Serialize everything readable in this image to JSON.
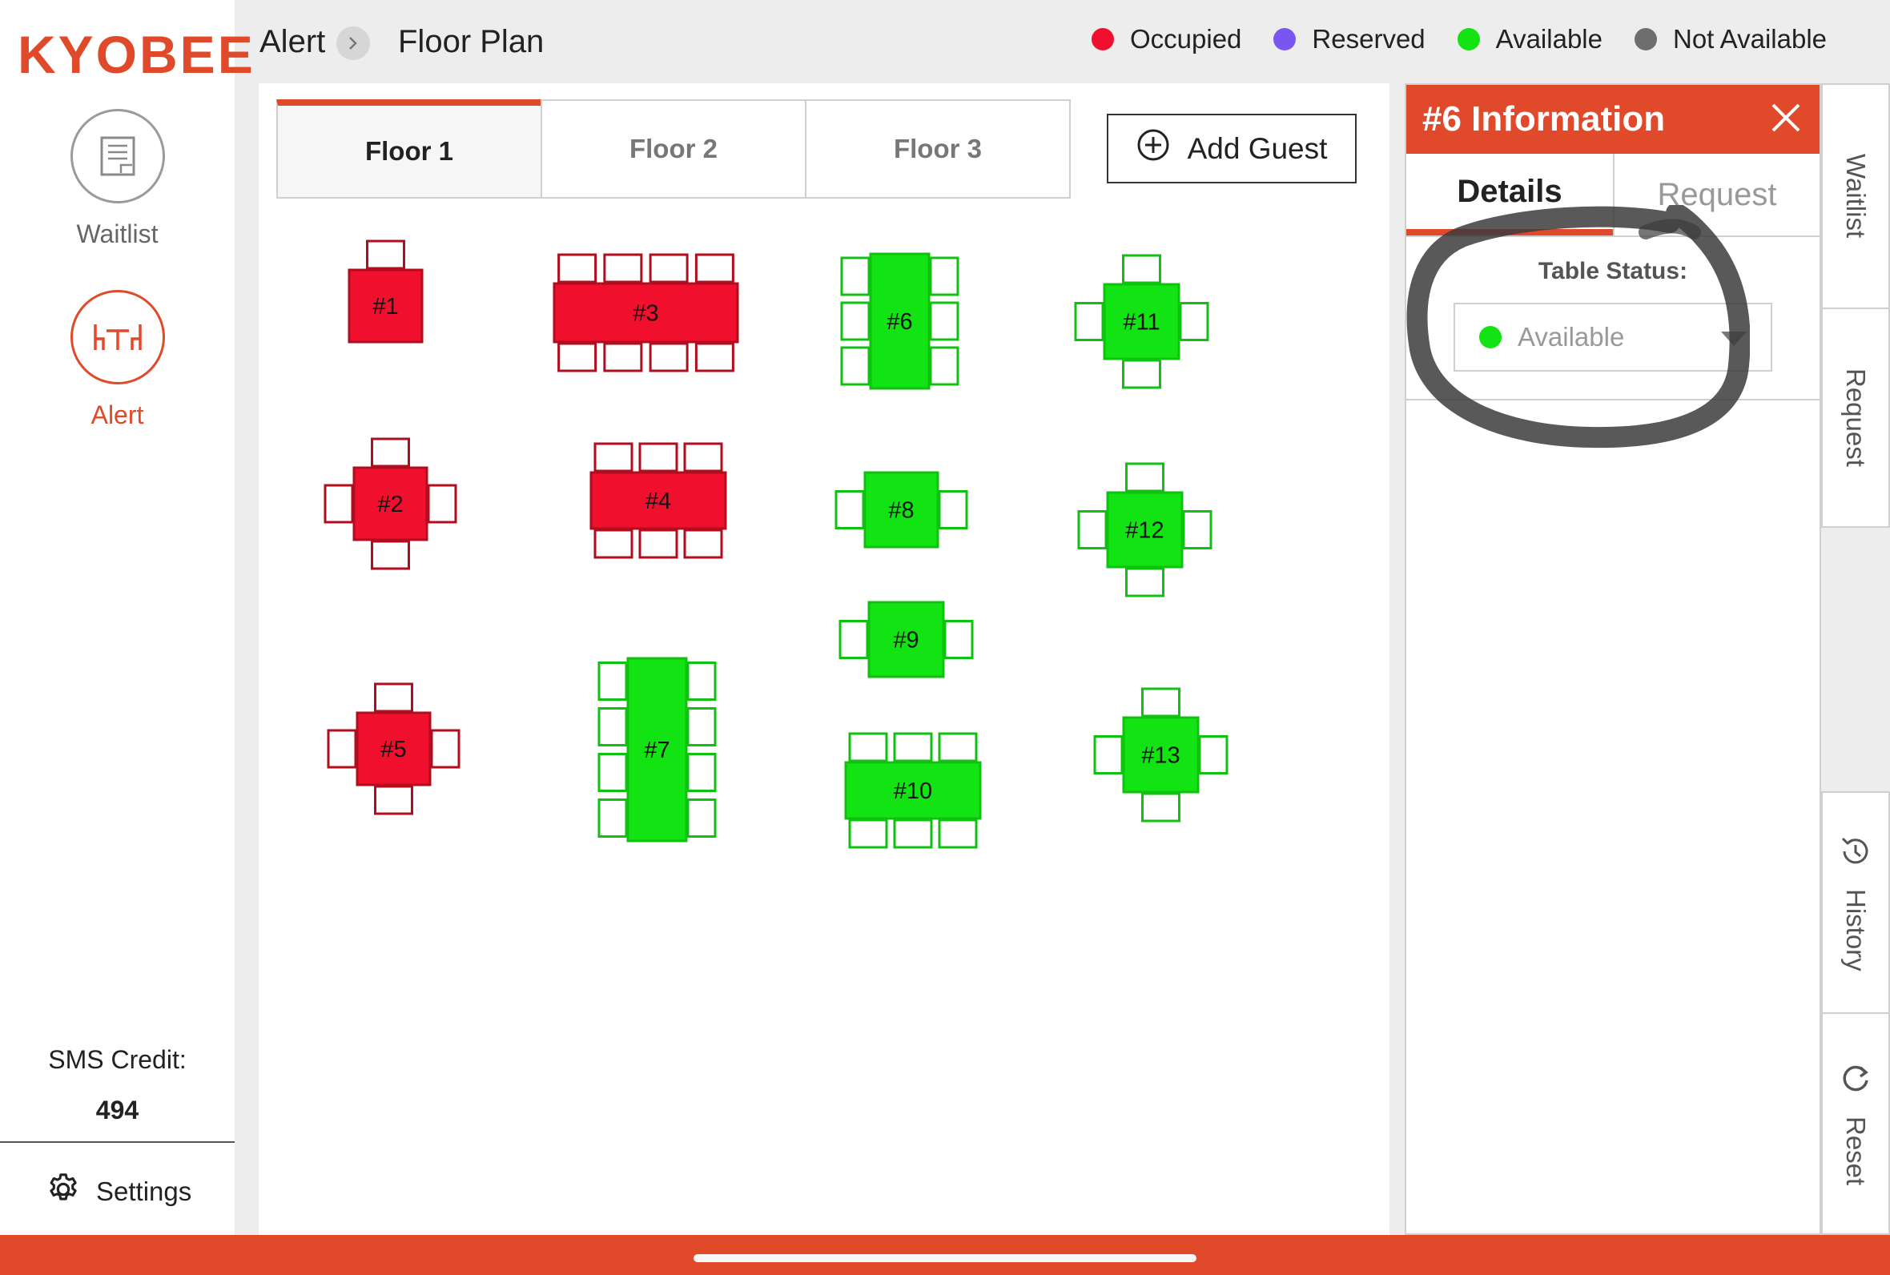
{
  "app": {
    "logo": "KYOBEE"
  },
  "sidebar": {
    "items": [
      {
        "label": "Waitlist",
        "icon": "waitlist-icon",
        "active": false
      },
      {
        "label": "Alert",
        "icon": "table-icon",
        "active": true
      }
    ],
    "sms_credit_label": "SMS Credit:",
    "sms_credit_value": "494",
    "settings_label": "Settings"
  },
  "header": {
    "title": "Alert",
    "subtitle": "Floor Plan",
    "legend": [
      {
        "label": "Occupied",
        "color": "#f0102e"
      },
      {
        "label": "Reserved",
        "color": "#7b55f0"
      },
      {
        "label": "Available",
        "color": "#12e312"
      },
      {
        "label": "Not Available",
        "color": "#6e6e6e"
      }
    ]
  },
  "floors": {
    "tabs": [
      {
        "label": "Floor 1",
        "active": true
      },
      {
        "label": "Floor 2",
        "active": false
      },
      {
        "label": "Floor 3",
        "active": false
      }
    ],
    "add_guest_label": "Add Guest"
  },
  "tables": [
    {
      "label": "#1",
      "status": "occupied"
    },
    {
      "label": "#2",
      "status": "occupied"
    },
    {
      "label": "#3",
      "status": "occupied"
    },
    {
      "label": "#4",
      "status": "occupied"
    },
    {
      "label": "#5",
      "status": "occupied"
    },
    {
      "label": "#6",
      "status": "available"
    },
    {
      "label": "#7",
      "status": "available"
    },
    {
      "label": "#8",
      "status": "available"
    },
    {
      "label": "#9",
      "status": "available"
    },
    {
      "label": "#10",
      "status": "available"
    },
    {
      "label": "#11",
      "status": "available"
    },
    {
      "label": "#12",
      "status": "available"
    },
    {
      "label": "#13",
      "status": "available"
    }
  ],
  "status_colors": {
    "occupied": {
      "fill": "#f0102e",
      "stroke": "#b00d1e"
    },
    "available": {
      "fill": "#12e312",
      "stroke": "#0fc20f"
    }
  },
  "info_panel": {
    "title": "#6 Information",
    "tabs": [
      {
        "label": "Details",
        "active": true
      },
      {
        "label": "Request",
        "active": false
      }
    ],
    "table_status_label": "Table Status:",
    "table_status_value": "Available",
    "table_status_color": "#12e312"
  },
  "right_tabs": [
    {
      "label": "Waitlist"
    },
    {
      "label": "Request"
    },
    {
      "label": "History",
      "icon": "history-icon"
    },
    {
      "label": "Reset",
      "icon": "reset-icon"
    }
  ],
  "accent_color": "#e04a2a"
}
